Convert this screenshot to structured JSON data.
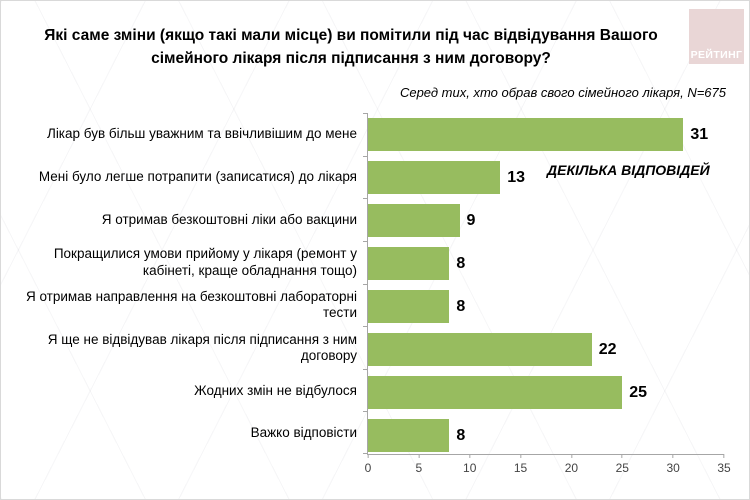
{
  "page": {
    "title": "Які саме зміни (якщо такі мали місце) ви помітили під час відвідування Вашого сімейного лікаря після підписання з ним договору?",
    "subtitle": "Серед тих, хто обрав  свого сімейного лікаря, N=675",
    "annotation": "ДЕКІЛЬКА ВІДПОВІДЕЙ",
    "logo_text": "РЕЙТИНГ"
  },
  "colors": {
    "bar": "#97bc5f",
    "logo_bg": "#e9d6d6",
    "logo_text": "#ffffff",
    "axis": "#a6a6a6"
  },
  "chart_data": {
    "type": "bar",
    "orientation": "horizontal",
    "title": "Які саме зміни (якщо такі мали місце) ви помітили під час відвідування Вашого сімейного лікаря після підписання з ним договору?",
    "subtitle": "Серед тих, хто обрав  свого сімейного лікаря, N=675",
    "annotation": "ДЕКІЛЬКА ВІДПОВІДЕЙ",
    "categories": [
      "Лікар був більш уважним та ввічливішим до мене",
      "Мені було легше потрапити (записатися) до лікаря",
      "Я отримав безкоштовні ліки або вакцини",
      "Покращилися умови прийому у лікаря (ремонт у кабінеті, краще обладнання тощо)",
      "Я отримав направлення на безкоштовні лабораторні тести",
      "Я ще не відвідував лікаря після підписання з ним договору",
      "Жодних змін не відбулося",
      "Важко відповісти"
    ],
    "values": [
      31,
      13,
      9,
      8,
      8,
      22,
      25,
      8
    ],
    "xlim": [
      0,
      35
    ],
    "x_ticks": [
      0,
      5,
      10,
      15,
      20,
      25,
      30,
      35
    ],
    "grid": false,
    "legend": false
  }
}
